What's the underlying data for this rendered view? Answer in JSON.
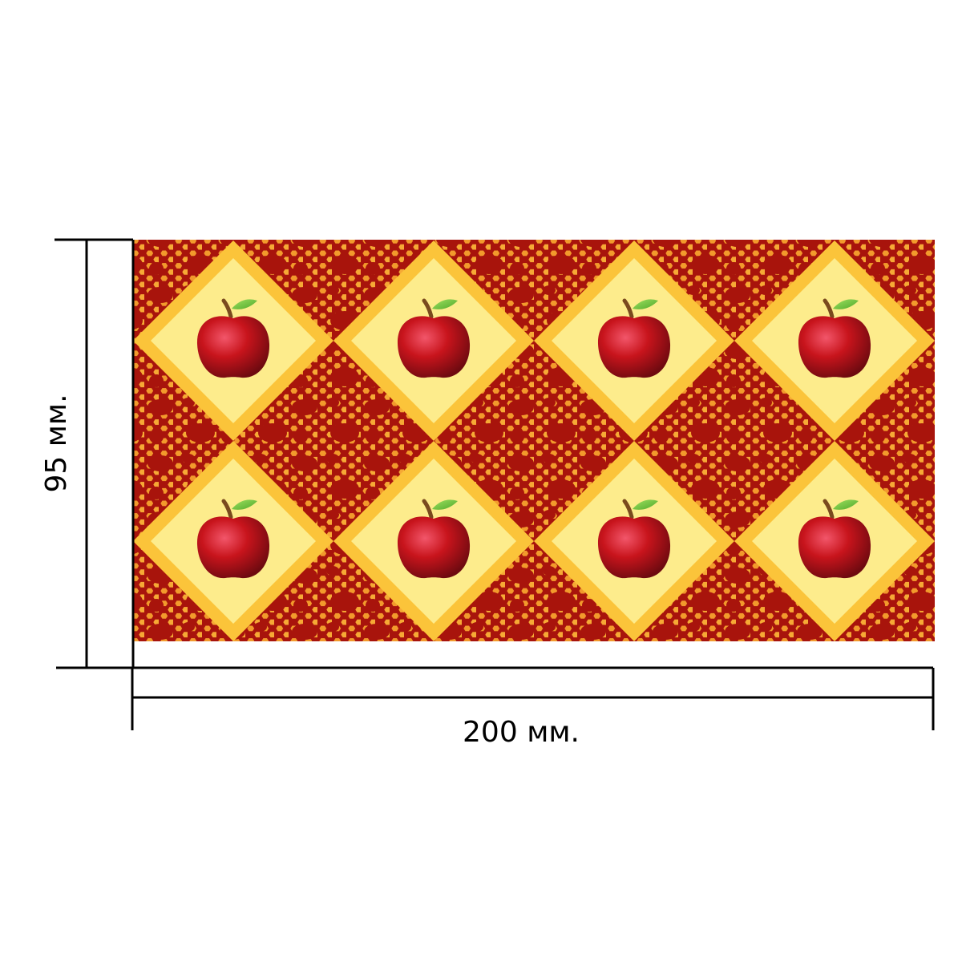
{
  "dimensions": {
    "height_label": "95 мм.",
    "width_label": "200 мм.",
    "height_mm": 95,
    "width_mm": 200
  },
  "pattern": {
    "columns": 4,
    "rows": 2,
    "motif_icon": "apple-icon",
    "colors": {
      "background": "#a8140c",
      "honeycomb": "#f7a030",
      "diamond_border": "#fbc43a",
      "diamond_fill": "#fdec8c",
      "apple": "#c8141c",
      "leaf": "#6cc23a",
      "stem": "#7a4a1e"
    }
  }
}
